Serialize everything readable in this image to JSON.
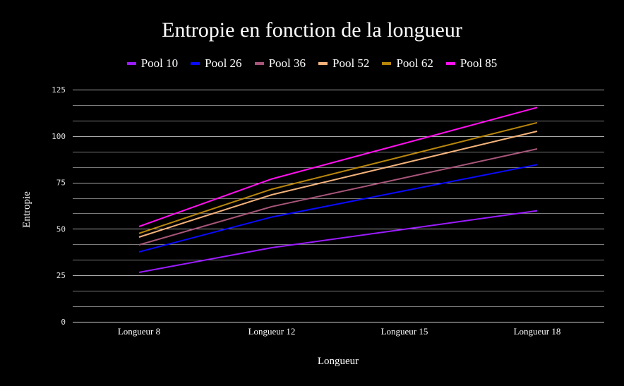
{
  "chart_data": {
    "type": "line",
    "title": "Entropie en fonction de la longueur",
    "xlabel": "Longueur",
    "ylabel": "Entropie",
    "categories": [
      "Longueur 8",
      "Longueur 12",
      "Longueur 15",
      "Longueur 18"
    ],
    "ylim": [
      0,
      125
    ],
    "yticks": [
      0,
      25,
      50,
      75,
      100,
      125
    ],
    "grid": true,
    "legend_position": "top",
    "series": [
      {
        "name": "Pool 10",
        "color": "#9b1bff",
        "values": [
          26.6,
          39.9,
          49.8,
          59.8
        ]
      },
      {
        "name": "Pool 26",
        "color": "#0a0aff",
        "values": [
          37.6,
          56.4,
          70.5,
          84.6
        ]
      },
      {
        "name": "Pool 36",
        "color": "#a8557a",
        "values": [
          41.4,
          62.0,
          77.5,
          93.1
        ]
      },
      {
        "name": "Pool 52",
        "color": "#f4b27a",
        "values": [
          45.6,
          68.4,
          85.5,
          102.6
        ]
      },
      {
        "name": "Pool 62",
        "color": "#b8860b",
        "values": [
          47.6,
          71.4,
          89.3,
          107.2
        ]
      },
      {
        "name": "Pool 85",
        "color": "#ff10ee",
        "values": [
          51.3,
          76.9,
          96.1,
          115.4
        ]
      }
    ]
  }
}
